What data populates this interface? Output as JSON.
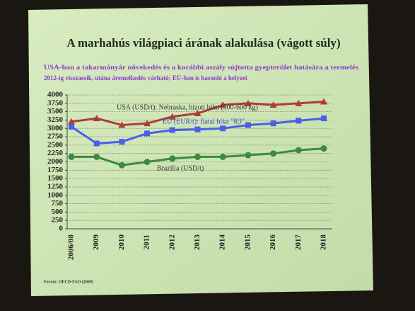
{
  "chart_data": {
    "type": "line",
    "title": "A marhahús világpiaci árának alakulása (vágott súly)",
    "subtitle": [
      "USA-ban a takarmányár növekedés és a korábbi aszály sújtotta gyepterület hatására a termelés",
      "2012-ig visszaesik, utána áremelkedés várható; EU-ban is hasonló a helyzet"
    ],
    "categories": [
      "2006/08",
      "2009",
      "2010",
      "2011",
      "2012",
      "2013",
      "2014",
      "2015",
      "2016",
      "2017",
      "2018"
    ],
    "series": [
      {
        "name": "USA (USD/t): Nebraska, hízott bika (500-600 kg)",
        "color": "#b03a3a",
        "marker": "triangle",
        "values": [
          3200,
          3300,
          3100,
          3150,
          3350,
          3450,
          3700,
          3750,
          3700,
          3750,
          3800
        ]
      },
      {
        "name": "EU (EUR/t): fiatal bika \"R3\"",
        "color": "#4a5ee8",
        "marker": "square",
        "values": [
          3050,
          2550,
          2600,
          2850,
          2950,
          2970,
          3000,
          3100,
          3150,
          3230,
          3300
        ]
      },
      {
        "name": "Brazília (USD/t)",
        "color": "#3d8a3d",
        "marker": "circle",
        "values": [
          2150,
          2150,
          1900,
          2000,
          2100,
          2150,
          2150,
          2200,
          2250,
          2350,
          2400
        ]
      }
    ],
    "ylim": [
      0,
      4000
    ],
    "yticks": [
      0,
      250,
      500,
      750,
      1000,
      1250,
      1500,
      1750,
      2000,
      2250,
      2500,
      2750,
      3000,
      3250,
      3500,
      3750,
      4000
    ],
    "grid": true,
    "source": "Forrás: OECD-FAO (2009)"
  }
}
